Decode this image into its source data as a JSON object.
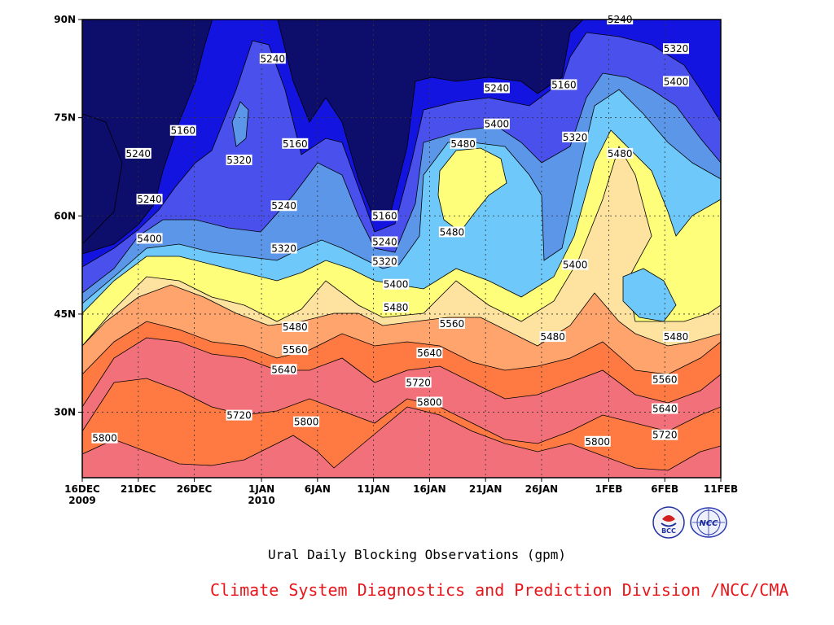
{
  "chart_data": {
    "type": "heatmap",
    "subtype": "filled-contour",
    "title": "Ural Daily Blocking Observations (gpm)",
    "xlabel": "",
    "ylabel": "",
    "x_ticks": [
      {
        "label": "16DEC",
        "sub": "2009",
        "date": "2009-12-16"
      },
      {
        "label": "21DEC",
        "date": "2009-12-21"
      },
      {
        "label": "26DEC",
        "date": "2009-12-26"
      },
      {
        "label": "1JAN",
        "sub": "2010",
        "date": "2010-01-01"
      },
      {
        "label": "6JAN",
        "date": "2010-01-06"
      },
      {
        "label": "11JAN",
        "date": "2010-01-11"
      },
      {
        "label": "16JAN",
        "date": "2010-01-16"
      },
      {
        "label": "21JAN",
        "date": "2010-01-21"
      },
      {
        "label": "26JAN",
        "date": "2010-01-26"
      },
      {
        "label": "1FEB",
        "date": "2010-02-01"
      },
      {
        "label": "6FEB",
        "date": "2010-02-06"
      },
      {
        "label": "11FEB",
        "date": "2010-02-11"
      }
    ],
    "x_range": [
      "2009-12-16",
      "2010-02-11"
    ],
    "y_ticks": [
      {
        "label": "30N",
        "value": 30
      },
      {
        "label": "45N",
        "value": 45
      },
      {
        "label": "60N",
        "value": 60
      },
      {
        "label": "75N",
        "value": 75
      },
      {
        "label": "90N",
        "value": 90
      }
    ],
    "y_range": [
      20,
      90
    ],
    "grid": true,
    "contour_levels": [
      5160,
      5240,
      5320,
      5400,
      5480,
      5560,
      5640,
      5720,
      5800
    ],
    "fill_colors": [
      "#0d0d6b",
      "#1414e0",
      "#4a50ec",
      "#5c96e8",
      "#6ec8fa",
      "#fefe7a",
      "#fee3a0",
      "#fea46c",
      "#fe7a42",
      "#f2707a"
    ],
    "contour_labels": [
      {
        "text": "5240",
        "date": "2010-02-02",
        "lat": 90
      },
      {
        "text": "5240",
        "date": "2010-01-02",
        "lat": 84
      },
      {
        "text": "5320",
        "date": "2010-02-07",
        "lat": 85.5
      },
      {
        "text": "5160",
        "date": "2009-12-25",
        "lat": 73
      },
      {
        "text": "5240",
        "date": "2009-12-21",
        "lat": 69.5
      },
      {
        "text": "5320",
        "date": "2009-12-30",
        "lat": 68.5
      },
      {
        "text": "5160",
        "date": "2010-01-04",
        "lat": 71
      },
      {
        "text": "5240",
        "date": "2010-01-22",
        "lat": 79.5
      },
      {
        "text": "5160",
        "date": "2010-01-28",
        "lat": 80
      },
      {
        "text": "5400",
        "date": "2010-02-07",
        "lat": 80.5
      },
      {
        "text": "5400",
        "date": "2010-01-22",
        "lat": 74
      },
      {
        "text": "5320",
        "date": "2010-01-29",
        "lat": 72
      },
      {
        "text": "5480",
        "date": "2010-01-19",
        "lat": 71
      },
      {
        "text": "5480",
        "date": "2010-02-02",
        "lat": 69.5
      },
      {
        "text": "5240",
        "date": "2009-12-22",
        "lat": 62.5
      },
      {
        "text": "5240",
        "date": "2010-01-03",
        "lat": 61.5
      },
      {
        "text": "5160",
        "date": "2010-01-12",
        "lat": 60
      },
      {
        "text": "5400",
        "date": "2009-12-22",
        "lat": 56.5
      },
      {
        "text": "5240",
        "date": "2010-01-12",
        "lat": 56
      },
      {
        "text": "5480",
        "date": "2010-01-18",
        "lat": 57.5
      },
      {
        "text": "5320",
        "date": "2010-01-03",
        "lat": 55
      },
      {
        "text": "5320",
        "date": "2010-01-12",
        "lat": 53
      },
      {
        "text": "5400",
        "date": "2010-01-29",
        "lat": 52.5
      },
      {
        "text": "5400",
        "date": "2010-01-13",
        "lat": 49.5
      },
      {
        "text": "5480",
        "date": "2010-01-13",
        "lat": 46
      },
      {
        "text": "5480",
        "date": "2010-01-04",
        "lat": 43
      },
      {
        "text": "5560",
        "date": "2010-01-18",
        "lat": 43.5
      },
      {
        "text": "5480",
        "date": "2010-01-27",
        "lat": 41.5
      },
      {
        "text": "5480",
        "date": "2010-02-07",
        "lat": 41.5
      },
      {
        "text": "5560",
        "date": "2010-01-04",
        "lat": 39.5
      },
      {
        "text": "5640",
        "date": "2010-01-16",
        "lat": 39
      },
      {
        "text": "5640",
        "date": "2010-01-03",
        "lat": 36.5
      },
      {
        "text": "5560",
        "date": "2010-02-06",
        "lat": 35
      },
      {
        "text": "5720",
        "date": "2010-01-15",
        "lat": 34.5
      },
      {
        "text": "5800",
        "date": "2010-01-16",
        "lat": 31.5
      },
      {
        "text": "5640",
        "date": "2010-02-06",
        "lat": 30.5
      },
      {
        "text": "5720",
        "date": "2009-12-30",
        "lat": 29.5
      },
      {
        "text": "5800",
        "date": "2010-01-05",
        "lat": 28.5
      },
      {
        "text": "5720",
        "date": "2010-02-06",
        "lat": 26.5
      },
      {
        "text": "5800",
        "date": "2009-12-18",
        "lat": 26
      },
      {
        "text": "5800",
        "date": "2010-01-31",
        "lat": 25.5
      }
    ]
  },
  "caption": "Ural Daily Blocking Observations (gpm)",
  "credit": "Climate System Diagnostics and Prediction Division /NCC/CMA",
  "logos": [
    {
      "name": "bcc-logo",
      "text": "BCC"
    },
    {
      "name": "ncc-logo",
      "text": "NCC"
    }
  ]
}
